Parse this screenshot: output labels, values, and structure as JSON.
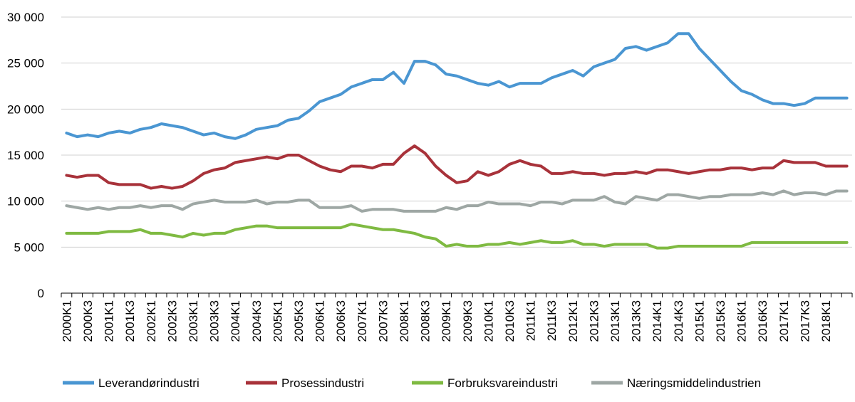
{
  "chart_data": {
    "type": "line",
    "title": "",
    "xlabel": "",
    "ylabel": "",
    "ylim": [
      0,
      30000
    ],
    "yticks": [
      0,
      5000,
      10000,
      15000,
      20000,
      25000,
      30000
    ],
    "ytick_labels": [
      "0",
      "5 000",
      "10 000",
      "15 000",
      "20 000",
      "25 000",
      "30 000"
    ],
    "grid": "horizontal",
    "legend_position": "bottom",
    "x": [
      "2000K1",
      "2000K2",
      "2000K3",
      "2000K4",
      "2001K1",
      "2001K2",
      "2001K3",
      "2001K4",
      "2002K1",
      "2002K2",
      "2002K3",
      "2002K4",
      "2003K1",
      "2003K2",
      "2003K3",
      "2003K4",
      "2004K1",
      "2004K2",
      "2004K3",
      "2004K4",
      "2005K1",
      "2005K2",
      "2005K3",
      "2005K4",
      "2006K1",
      "2006K2",
      "2006K3",
      "2006K4",
      "2007K1",
      "2007K2",
      "2007K3",
      "2007K4",
      "2008K1",
      "2008K2",
      "2008K3",
      "2008K4",
      "2009K1",
      "2009K2",
      "2009K3",
      "2009K4",
      "2010K1",
      "2010K2",
      "2010K3",
      "2010K4",
      "2011K1",
      "2011K2",
      "2011K3",
      "2011K4",
      "2012K1",
      "2012K2",
      "2012K3",
      "2012K4",
      "2013K1",
      "2013K2",
      "2013K3",
      "2013K4",
      "2014K1",
      "2014K2",
      "2014K3",
      "2014K4",
      "2015K1",
      "2015K2",
      "2015K3",
      "2015K4",
      "2016K1",
      "2016K2",
      "2016K3",
      "2016K4",
      "2017K1",
      "2017K2",
      "2017K3",
      "2017K4",
      "2018K1",
      "2018K2",
      "2018K3"
    ],
    "xtick_labels": [
      "2000K1",
      "2000K3",
      "2001K1",
      "2001K3",
      "2002K1",
      "2002K3",
      "2003K1",
      "2003K3",
      "2004K1",
      "2004K3",
      "2005K1",
      "2005K3",
      "2006K1",
      "2006K3",
      "2007K1",
      "2007K3",
      "2008K1",
      "2008K3",
      "2009K1",
      "2009K3",
      "2010K1",
      "2010K3",
      "2011K1",
      "2011K3",
      "2012K1",
      "2012K3",
      "2013K1",
      "2013K3",
      "2014K1",
      "2014K3",
      "2015K1",
      "2015K3",
      "2016K1",
      "2016K3",
      "2017K1",
      "2017K3",
      "2018K1"
    ],
    "series": [
      {
        "name": "Leverandørindustri",
        "color": "#4a96d2",
        "values": [
          17400,
          17000,
          17200,
          17000,
          17400,
          17600,
          17400,
          17800,
          18000,
          18400,
          18200,
          18000,
          17600,
          17200,
          17400,
          17000,
          16800,
          17200,
          17800,
          18000,
          18200,
          18800,
          19000,
          19800,
          20800,
          21200,
          21600,
          22400,
          22800,
          23200,
          23200,
          24000,
          22800,
          25200,
          25200,
          24800,
          23800,
          23600,
          23200,
          22800,
          22600,
          23000,
          22400,
          22800,
          22800,
          22800,
          23400,
          23800,
          24200,
          23600,
          24600,
          25000,
          25400,
          26600,
          26800,
          26400,
          26800,
          27200,
          28200,
          28200,
          26600,
          25400,
          24200,
          23000,
          22000,
          21600,
          21000,
          20600,
          20600,
          20400,
          20600,
          21200,
          21200,
          21200,
          21200
        ]
      },
      {
        "name": "Prosessindustri",
        "color": "#a8323a",
        "values": [
          12800,
          12600,
          12800,
          12800,
          12000,
          11800,
          11800,
          11800,
          11400,
          11600,
          11400,
          11600,
          12200,
          13000,
          13400,
          13600,
          14200,
          14400,
          14600,
          14800,
          14600,
          15000,
          15000,
          14400,
          13800,
          13400,
          13200,
          13800,
          13800,
          13600,
          14000,
          14000,
          15200,
          16000,
          15200,
          13800,
          12800,
          12000,
          12200,
          13200,
          12800,
          13200,
          14000,
          14400,
          14000,
          13800,
          13000,
          13000,
          13200,
          13000,
          13000,
          12800,
          13000,
          13000,
          13200,
          13000,
          13400,
          13400,
          13200,
          13000,
          13200,
          13400,
          13400,
          13600,
          13600,
          13400,
          13600,
          13600,
          14400,
          14200,
          14200,
          14200,
          13800,
          13800,
          13800
        ]
      },
      {
        "name": "Forbruksvareindustri",
        "color": "#7fba42",
        "values": [
          6500,
          6500,
          6500,
          6500,
          6700,
          6700,
          6700,
          6900,
          6500,
          6500,
          6300,
          6100,
          6500,
          6300,
          6500,
          6500,
          6900,
          7100,
          7300,
          7300,
          7100,
          7100,
          7100,
          7100,
          7100,
          7100,
          7100,
          7500,
          7300,
          7100,
          6900,
          6900,
          6700,
          6500,
          6100,
          5900,
          5100,
          5300,
          5100,
          5100,
          5300,
          5300,
          5500,
          5300,
          5500,
          5700,
          5500,
          5500,
          5700,
          5300,
          5300,
          5100,
          5300,
          5300,
          5300,
          5300,
          4900,
          4900,
          5100,
          5100,
          5100,
          5100,
          5100,
          5100,
          5100,
          5500,
          5500,
          5500,
          5500,
          5500,
          5500,
          5500,
          5500,
          5500,
          5500
        ]
      },
      {
        "name": "Næringsmiddelindustrien",
        "color": "#9ea7a4",
        "values": [
          9500,
          9300,
          9100,
          9300,
          9100,
          9300,
          9300,
          9500,
          9300,
          9500,
          9500,
          9100,
          9700,
          9900,
          10100,
          9900,
          9900,
          9900,
          10100,
          9700,
          9900,
          9900,
          10100,
          10100,
          9300,
          9300,
          9300,
          9500,
          8900,
          9100,
          9100,
          9100,
          8900,
          8900,
          8900,
          8900,
          9300,
          9100,
          9500,
          9500,
          9900,
          9700,
          9700,
          9700,
          9500,
          9900,
          9900,
          9700,
          10100,
          10100,
          10100,
          10500,
          9900,
          9700,
          10500,
          10300,
          10100,
          10700,
          10700,
          10500,
          10300,
          10500,
          10500,
          10700,
          10700,
          10700,
          10900,
          10700,
          11100,
          10700,
          10900,
          10900,
          10700,
          11100,
          11100
        ]
      }
    ]
  }
}
